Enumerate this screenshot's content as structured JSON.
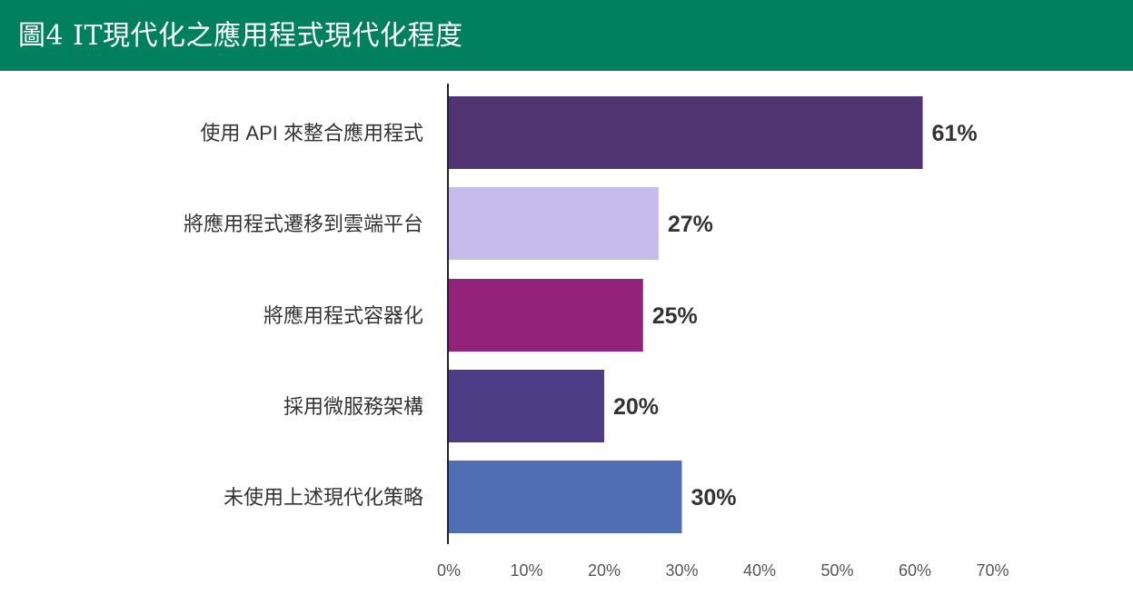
{
  "header": {
    "title": "圖4 IT現代化之應用程式現代化程度",
    "background": "#00805f"
  },
  "chart_data": {
    "type": "bar",
    "orientation": "horizontal",
    "title": "圖4 IT現代化之應用程式現代化程度",
    "categories": [
      "使用 API 來整合應用程式",
      "將應用程式遷移到雲端平台",
      "將應用程式容器化",
      "採用微服務架構",
      "未使用上述現代化策略"
    ],
    "values": [
      61,
      27,
      25,
      20,
      30
    ],
    "value_labels": [
      "61%",
      "27%",
      "25%",
      "20%",
      "30%"
    ],
    "colors": [
      "#513572",
      "#c5bcec",
      "#93227b",
      "#4c3d86",
      "#4f6eb3"
    ],
    "xlim": [
      0,
      70
    ],
    "xticks": [
      0,
      10,
      20,
      30,
      40,
      50,
      60,
      70
    ],
    "xtick_labels": [
      "0%",
      "10%",
      "20%",
      "30%",
      "40%",
      "50%",
      "60%",
      "70%"
    ],
    "xlabel": "",
    "ylabel": "",
    "grid": false,
    "legend": "none"
  }
}
